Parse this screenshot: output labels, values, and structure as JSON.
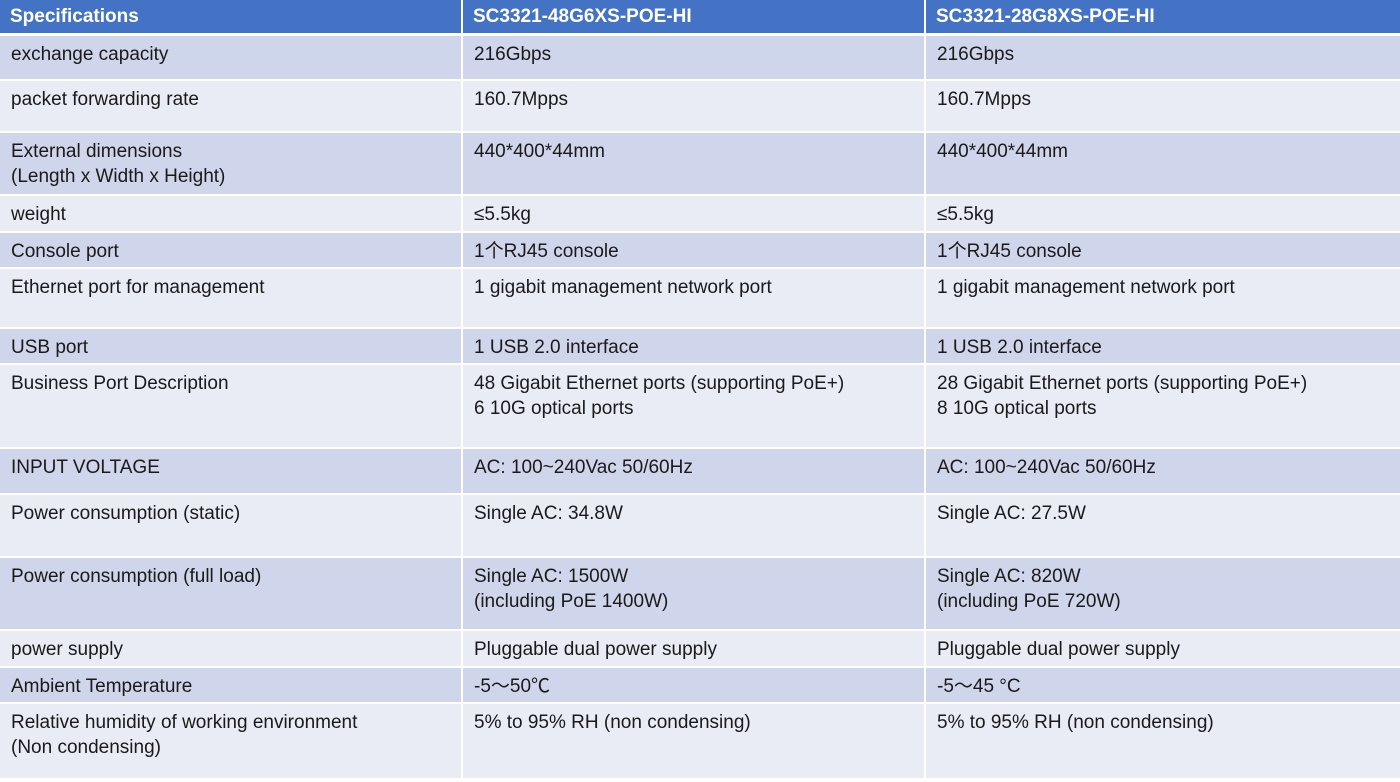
{
  "table": {
    "headers": [
      "Specifications",
      "SC3321-48G6XS-POE-HI",
      "SC3321-28G8XS-POE-HI"
    ],
    "rows": [
      {
        "spec": "exchange capacity",
        "model_a": "216Gbps",
        "model_b": "216Gbps"
      },
      {
        "spec": "packet forwarding rate",
        "model_a": "160.7Mpps",
        "model_b": "160.7Mpps"
      },
      {
        "spec": "External dimensions\n(Length x Width x Height)",
        "model_a": "440*400*44mm",
        "model_b": "440*400*44mm"
      },
      {
        "spec": "weight",
        "model_a": "≤5.5kg",
        "model_b": "≤5.5kg"
      },
      {
        "spec": "Console port",
        "model_a": "1个RJ45 console",
        "model_b": "1个RJ45 console"
      },
      {
        "spec": "Ethernet port for management",
        "model_a": "1 gigabit management network port",
        "model_b": "1 gigabit management network port"
      },
      {
        "spec": "USB port",
        "model_a": "1 USB 2.0 interface",
        "model_b": "1 USB 2.0 interface"
      },
      {
        "spec": "Business Port Description",
        "model_a": "48 Gigabit Ethernet ports (supporting PoE+)\n6 10G optical ports",
        "model_b": "28 Gigabit Ethernet ports (supporting PoE+)\n8 10G optical ports"
      },
      {
        "spec": "INPUT VOLTAGE",
        "model_a": "AC: 100~240Vac 50/60Hz",
        "model_b": "AC: 100~240Vac 50/60Hz"
      },
      {
        "spec": "Power consumption (static)",
        "model_a": "Single AC: 34.8W",
        "model_b": "Single AC: 27.5W"
      },
      {
        "spec": "Power consumption (full load)",
        "model_a": "Single AC: 1500W\n(including PoE 1400W)",
        "model_b": "Single AC: 820W\n(including PoE 720W)"
      },
      {
        "spec": "power supply",
        "model_a": "Pluggable dual power supply",
        "model_b": "Pluggable dual power supply"
      },
      {
        "spec": "Ambient Temperature",
        "model_a": "-5～50℃",
        "model_b": "-5～45 °C"
      },
      {
        "spec": "Relative humidity of working environment\n(Non condensing)",
        "model_a": "5% to 95% RH (non condensing)",
        "model_b": "5% to 95% RH (non condensing)"
      }
    ]
  },
  "colors": {
    "header_bg": "#4472c4",
    "row_dark": "#cfd5ea",
    "row_light": "#e9ebf5"
  }
}
